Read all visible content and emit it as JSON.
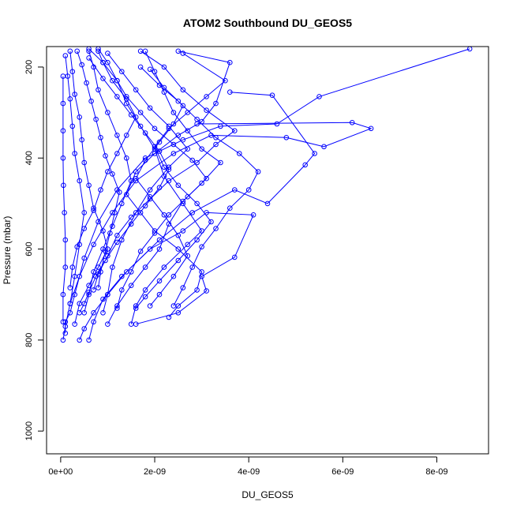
{
  "chart_data": {
    "type": "scatter",
    "title": "ATOM2 Southbound DU_GEOS5",
    "xlabel": "DU_GEOS5",
    "ylabel": "Pressure (mbar)",
    "xlim": [
      -3e-10,
      9.1e-09
    ],
    "ylim": [
      1050,
      155
    ],
    "y_axis_inverted": true,
    "x_ticks": [
      0,
      2e-09,
      4e-09,
      6e-09,
      8e-09
    ],
    "x_tick_labels": [
      "0e+00",
      "2e-09",
      "4e-09",
      "6e-09",
      "8e-09"
    ],
    "y_ticks": [
      200,
      400,
      600,
      800,
      1000
    ],
    "y_tick_labels": [
      "200",
      "400",
      "600",
      "800",
      "1000"
    ],
    "marker": "open-circle",
    "connected": true,
    "series_color": "#0000ff",
    "grid": false,
    "legend": "none",
    "series": [
      {
        "points": [
          [
            1e-10,
            785
          ],
          [
            1e-10,
            760
          ],
          [
            2e-10,
            740
          ],
          [
            3e-10,
            700
          ],
          [
            5e-10,
            620
          ],
          [
            8e-10,
            540
          ],
          [
            1.2e-09,
            470
          ],
          [
            1.8e-09,
            400
          ],
          [
            2.6e-09,
            360
          ],
          [
            3.4e-09,
            330
          ],
          [
            4.6e-09,
            325
          ],
          [
            5.5e-09,
            265
          ],
          [
            8.7e-09,
            160
          ]
        ]
      },
      {
        "points": [
          [
            5e-11,
            800
          ],
          [
            1e-10,
            770
          ],
          [
            2e-10,
            720
          ],
          [
            4e-10,
            660
          ],
          [
            7e-10,
            590
          ],
          [
            1.1e-09,
            520
          ],
          [
            1.6e-09,
            450
          ],
          [
            2.4e-09,
            390
          ],
          [
            3.2e-09,
            350
          ],
          [
            4.8e-09,
            355
          ],
          [
            5.6e-09,
            375
          ],
          [
            6.6e-09,
            335
          ],
          [
            6.2e-09,
            322
          ],
          [
            2.9e-09,
            325
          ]
        ]
      },
      {
        "points": [
          [
            4e-10,
            800
          ],
          [
            5e-10,
            775
          ],
          [
            7e-10,
            740
          ],
          [
            1e-09,
            700
          ],
          [
            1.4e-09,
            650
          ],
          [
            2.1e-09,
            580
          ],
          [
            2.8e-09,
            520
          ],
          [
            3.7e-09,
            470
          ],
          [
            4.4e-09,
            500
          ],
          [
            5.2e-09,
            415
          ],
          [
            5.4e-09,
            390
          ],
          [
            4.5e-09,
            262
          ],
          [
            3.6e-09,
            255
          ]
        ]
      },
      {
        "points": [
          [
            6e-10,
            800
          ],
          [
            7e-10,
            760
          ],
          [
            9e-10,
            710
          ],
          [
            1.3e-09,
            660
          ],
          [
            1.9e-09,
            600
          ],
          [
            2.6e-09,
            560
          ],
          [
            3.1e-09,
            520
          ],
          [
            4.1e-09,
            525
          ],
          [
            3.7e-09,
            618
          ],
          [
            3e-09,
            660
          ],
          [
            3.1e-09,
            692
          ],
          [
            2.5e-09,
            740
          ],
          [
            1.6e-09,
            765
          ]
        ]
      },
      {
        "points": [
          [
            1.5e-09,
            765
          ],
          [
            1.6e-09,
            725
          ],
          [
            1.8e-09,
            690
          ],
          [
            2.2e-09,
            640
          ],
          [
            2.7e-09,
            590
          ],
          [
            3e-09,
            560
          ],
          [
            2.6e-09,
            500
          ],
          [
            2.2e-09,
            440
          ],
          [
            2e-09,
            380
          ],
          [
            1.7e-09,
            330
          ],
          [
            1.4e-09,
            280
          ],
          [
            1.2e-09,
            230
          ],
          [
            9e-10,
            190
          ],
          [
            6e-10,
            160
          ]
        ]
      },
      {
        "points": [
          [
            2e-10,
            720
          ],
          [
            3e-10,
            660
          ],
          [
            4e-10,
            590
          ],
          [
            5e-10,
            520
          ],
          [
            4e-10,
            450
          ],
          [
            3e-10,
            390
          ],
          [
            2.5e-10,
            330
          ],
          [
            2e-10,
            270
          ],
          [
            1.5e-10,
            220
          ],
          [
            1e-10,
            175
          ]
        ]
      },
      {
        "points": [
          [
            9e-10,
            740
          ],
          [
            1e-09,
            700
          ],
          [
            1.1e-09,
            640
          ],
          [
            1.3e-09,
            580
          ],
          [
            1.6e-09,
            520
          ],
          [
            1.9e-09,
            470
          ],
          [
            2.3e-09,
            420
          ],
          [
            2.7e-09,
            380
          ],
          [
            2.3e-09,
            330
          ],
          [
            1.9e-09,
            290
          ],
          [
            1.6e-09,
            250
          ],
          [
            1.3e-09,
            210
          ],
          [
            1e-09,
            170
          ]
        ]
      },
      {
        "points": [
          [
            2.3e-09,
            750
          ],
          [
            2.5e-09,
            725
          ],
          [
            2.9e-09,
            690
          ],
          [
            3e-09,
            650
          ],
          [
            2.5e-09,
            600
          ],
          [
            2e-09,
            560
          ],
          [
            1.7e-09,
            520
          ],
          [
            1.4e-09,
            480
          ],
          [
            1.6e-09,
            430
          ],
          [
            2e-09,
            390
          ],
          [
            2.5e-09,
            350
          ],
          [
            3e-09,
            320
          ],
          [
            3.3e-09,
            280
          ],
          [
            3.6e-09,
            190
          ],
          [
            2.5e-09,
            165
          ]
        ]
      },
      {
        "points": [
          [
            3e-10,
            765
          ],
          [
            4e-10,
            720
          ],
          [
            6e-10,
            680
          ],
          [
            8e-10,
            640
          ],
          [
            1e-09,
            600
          ],
          [
            9e-10,
            560
          ],
          [
            7e-10,
            510
          ],
          [
            6e-10,
            460
          ],
          [
            5e-10,
            410
          ],
          [
            4.5e-10,
            360
          ],
          [
            4e-10,
            310
          ],
          [
            3e-10,
            260
          ],
          [
            2.5e-10,
            210
          ],
          [
            2e-10,
            165
          ]
        ]
      },
      {
        "points": [
          [
            1e-09,
            765
          ],
          [
            1.2e-09,
            725
          ],
          [
            1.5e-09,
            680
          ],
          [
            1.8e-09,
            640
          ],
          [
            2.1e-09,
            600
          ],
          [
            2.3e-09,
            545
          ],
          [
            2.6e-09,
            495
          ],
          [
            3e-09,
            455
          ],
          [
            3.4e-09,
            410
          ],
          [
            3e-09,
            380
          ],
          [
            2.7e-09,
            340
          ],
          [
            2.4e-09,
            300
          ],
          [
            2.2e-09,
            255
          ],
          [
            2e-09,
            210
          ],
          [
            1.8e-09,
            165
          ]
        ]
      },
      {
        "points": [
          [
            5e-11,
            760
          ],
          [
            5e-11,
            700
          ],
          [
            1e-10,
            640
          ],
          [
            1e-10,
            580
          ],
          [
            8e-11,
            520
          ],
          [
            6e-11,
            460
          ],
          [
            5e-11,
            400
          ],
          [
            5e-11,
            340
          ],
          [
            5e-11,
            280
          ],
          [
            5e-11,
            220
          ]
        ]
      },
      {
        "points": [
          [
            7e-10,
            690
          ],
          [
            8e-10,
            655
          ],
          [
            1e-09,
            615
          ],
          [
            1.2e-09,
            570
          ],
          [
            1.5e-09,
            530
          ],
          [
            1.9e-09,
            490
          ],
          [
            2.3e-09,
            450
          ],
          [
            2.9e-09,
            410
          ],
          [
            3.3e-09,
            370
          ],
          [
            3.7e-09,
            340
          ],
          [
            3.1e-09,
            295
          ],
          [
            2.6e-09,
            250
          ],
          [
            2.2e-09,
            200
          ],
          [
            1.7e-09,
            165
          ]
        ]
      },
      {
        "points": [
          [
            1.6e-09,
            730
          ],
          [
            1.8e-09,
            705
          ],
          [
            2.1e-09,
            670
          ],
          [
            2.5e-09,
            625
          ],
          [
            2.9e-09,
            580
          ],
          [
            3.2e-09,
            540
          ],
          [
            2.9e-09,
            500
          ],
          [
            2.5e-09,
            460
          ],
          [
            2.2e-09,
            420
          ],
          [
            2e-09,
            375
          ],
          [
            2.3e-09,
            335
          ],
          [
            2.7e-09,
            300
          ],
          [
            3.1e-09,
            265
          ],
          [
            3.5e-09,
            230
          ],
          [
            2.6e-09,
            170
          ]
        ]
      },
      {
        "points": [
          [
            5e-10,
            740
          ],
          [
            6e-10,
            700
          ],
          [
            7e-10,
            650
          ],
          [
            9e-10,
            600
          ],
          [
            1.1e-09,
            550
          ],
          [
            1.3e-09,
            500
          ],
          [
            1.5e-09,
            450
          ],
          [
            1.4e-09,
            400
          ],
          [
            1.2e-09,
            350
          ],
          [
            1e-09,
            300
          ],
          [
            8e-10,
            250
          ],
          [
            7e-10,
            200
          ],
          [
            6e-10,
            165
          ]
        ]
      },
      {
        "points": [
          [
            1.9e-09,
            725
          ],
          [
            2.1e-09,
            700
          ],
          [
            2.4e-09,
            660
          ],
          [
            2.7e-09,
            615
          ],
          [
            2.5e-09,
            570
          ],
          [
            2.2e-09,
            525
          ],
          [
            1.9e-09,
            485
          ],
          [
            1.6e-09,
            445
          ],
          [
            1.8e-09,
            405
          ],
          [
            2.1e-09,
            365
          ],
          [
            2.4e-09,
            325
          ],
          [
            2.6e-09,
            285
          ],
          [
            2.2e-09,
            245
          ],
          [
            1.9e-09,
            205
          ]
        ]
      },
      {
        "points": [
          [
            2e-10,
            685
          ],
          [
            2.5e-10,
            640
          ],
          [
            3.5e-10,
            595
          ],
          [
            5e-10,
            555
          ],
          [
            7e-10,
            515
          ],
          [
            8.5e-10,
            470
          ],
          [
            1e-09,
            430
          ],
          [
            1.2e-09,
            390
          ],
          [
            1.4e-09,
            350
          ],
          [
            1.6e-09,
            310
          ],
          [
            1.4e-09,
            270
          ],
          [
            1.1e-09,
            230
          ],
          [
            9e-10,
            190
          ],
          [
            8e-10,
            165
          ]
        ]
      },
      {
        "points": [
          [
            8e-10,
            685
          ],
          [
            8.5e-10,
            650
          ],
          [
            9.5e-10,
            605
          ],
          [
            1.05e-09,
            565
          ],
          [
            1.15e-09,
            520
          ],
          [
            1.25e-09,
            475
          ],
          [
            1.1e-09,
            435
          ],
          [
            9.5e-10,
            395
          ],
          [
            8.5e-10,
            355
          ],
          [
            7.5e-10,
            315
          ],
          [
            6.5e-10,
            275
          ],
          [
            5.5e-10,
            235
          ],
          [
            4.5e-10,
            195
          ],
          [
            3.5e-10,
            165
          ]
        ]
      },
      {
        "points": [
          [
            2.4e-09,
            725
          ],
          [
            2.6e-09,
            685
          ],
          [
            2.8e-09,
            640
          ],
          [
            3e-09,
            595
          ],
          [
            3.3e-09,
            555
          ],
          [
            3.6e-09,
            510
          ],
          [
            4e-09,
            470
          ],
          [
            4.2e-09,
            430
          ],
          [
            3.8e-09,
            390
          ],
          [
            3.3e-09,
            355
          ],
          [
            2.9e-09,
            315
          ],
          [
            2.5e-09,
            275
          ],
          [
            2.1e-09,
            240
          ],
          [
            1.7e-09,
            200
          ]
        ]
      },
      {
        "points": [
          [
            4e-10,
            740
          ],
          [
            5e-10,
            720
          ],
          [
            6e-10,
            695
          ],
          [
            7.5e-10,
            660
          ],
          [
            9.5e-10,
            625
          ],
          [
            1.2e-09,
            585
          ],
          [
            1.5e-09,
            545
          ],
          [
            1.8e-09,
            505
          ],
          [
            2.1e-09,
            465
          ],
          [
            2.3e-09,
            425
          ],
          [
            2.1e-09,
            385
          ],
          [
            1.8e-09,
            345
          ],
          [
            1.5e-09,
            305
          ],
          [
            1.2e-09,
            265
          ],
          [
            9e-10,
            225
          ],
          [
            6e-10,
            180
          ]
        ]
      },
      {
        "points": [
          [
            1.2e-09,
            730
          ],
          [
            1.3e-09,
            690
          ],
          [
            1.5e-09,
            650
          ],
          [
            1.7e-09,
            605
          ],
          [
            2e-09,
            565
          ],
          [
            2.3e-09,
            525
          ],
          [
            2.7e-09,
            485
          ],
          [
            3.1e-09,
            445
          ],
          [
            2.8e-09,
            405
          ],
          [
            2.4e-09,
            370
          ],
          [
            2e-09,
            335
          ],
          [
            1.7e-09,
            300
          ],
          [
            1.4e-09,
            265
          ],
          [
            1.2e-09,
            230
          ],
          [
            1e-09,
            190
          ],
          [
            8e-10,
            160
          ]
        ]
      }
    ]
  }
}
